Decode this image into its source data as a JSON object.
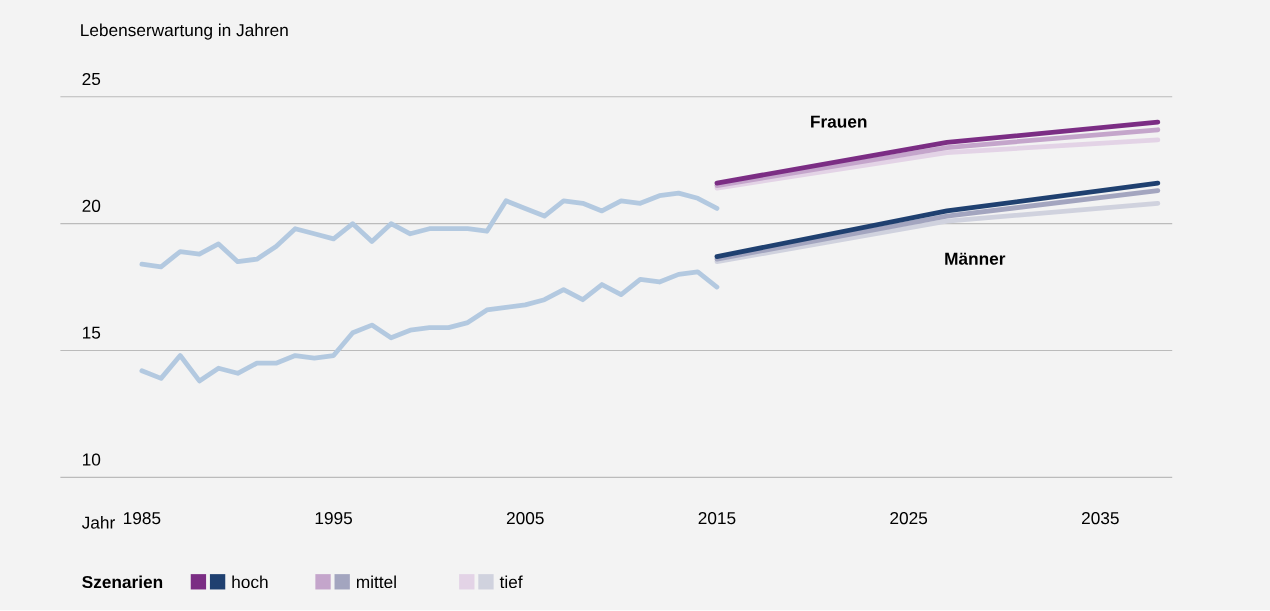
{
  "chart_data": {
    "type": "line",
    "ylabel": "Lebenserwartung in Jahren",
    "xlabel": "Jahr",
    "legend_title": "Szenarien",
    "legend": "bottom",
    "grid": "y",
    "xlim": [
      1980.75,
      2038.75
    ],
    "xticks": [
      1985,
      1995,
      2005,
      2015,
      2025,
      2035
    ],
    "ylim": [
      10,
      25
    ],
    "yticks": [
      10,
      15,
      20,
      25
    ],
    "annotations": [
      "Frauen",
      "Männer"
    ],
    "series": [
      {
        "color": "#b3c9e0",
        "x": [
          1985,
          1986,
          1987,
          1988,
          1989,
          1990,
          1991,
          1992,
          1993,
          1994,
          1995,
          1996,
          1997,
          1998,
          1999,
          2000,
          2001,
          2002,
          2003,
          2004,
          2005,
          2006,
          2007,
          2008,
          2009,
          2010,
          2011,
          2012,
          2013,
          2014,
          2015
        ],
        "values": [
          18.4,
          18.3,
          18.9,
          18.8,
          19.2,
          18.5,
          18.6,
          19.1,
          19.8,
          19.6,
          19.4,
          20.0,
          19.3,
          20.0,
          19.6,
          19.8,
          19.8,
          19.8,
          19.7,
          20.9,
          20.6,
          20.3,
          20.9,
          20.8,
          20.5,
          20.9,
          20.8,
          21.1,
          21.2,
          21.0,
          20.6
        ]
      },
      {
        "color": "#b3c9e0",
        "x": [
          1985,
          1986,
          1987,
          1988,
          1989,
          1990,
          1991,
          1992,
          1993,
          1994,
          1995,
          1996,
          1997,
          1998,
          1999,
          2000,
          2001,
          2002,
          2003,
          2004,
          2005,
          2006,
          2007,
          2008,
          2009,
          2010,
          2011,
          2012,
          2013,
          2014,
          2015
        ],
        "values": [
          14.2,
          13.9,
          14.8,
          13.8,
          14.3,
          14.1,
          14.5,
          14.5,
          14.8,
          14.7,
          14.8,
          15.7,
          16.0,
          15.5,
          15.8,
          15.9,
          15.9,
          16.1,
          16.6,
          16.7,
          16.8,
          17.0,
          17.4,
          17.0,
          17.6,
          17.2,
          17.8,
          17.7,
          18.0,
          18.1,
          17.5
        ]
      },
      {
        "color": "#7b2d84",
        "x": [
          2015,
          2027,
          2038
        ],
        "values": [
          21.6,
          23.2,
          24.0
        ]
      },
      {
        "color": "#c4a5cb",
        "x": [
          2015,
          2027,
          2038
        ],
        "values": [
          21.5,
          23.0,
          23.7
        ]
      },
      {
        "color": "#e3d3e6",
        "x": [
          2015,
          2027,
          2038
        ],
        "values": [
          21.4,
          22.8,
          23.3
        ]
      },
      {
        "name": "hoch",
        "color": "#1f4070",
        "x": [
          2015,
          2027,
          2038
        ],
        "values": [
          18.7,
          20.5,
          21.6
        ]
      },
      {
        "name": "mittel",
        "color": "#a3a5bf",
        "x": [
          2015,
          2027,
          2038
        ],
        "values": [
          18.6,
          20.3,
          21.3
        ]
      },
      {
        "name": "tief",
        "color": "#d0d2de",
        "x": [
          2015,
          2027,
          2038
        ],
        "values": [
          18.5,
          20.1,
          20.8
        ]
      }
    ]
  }
}
